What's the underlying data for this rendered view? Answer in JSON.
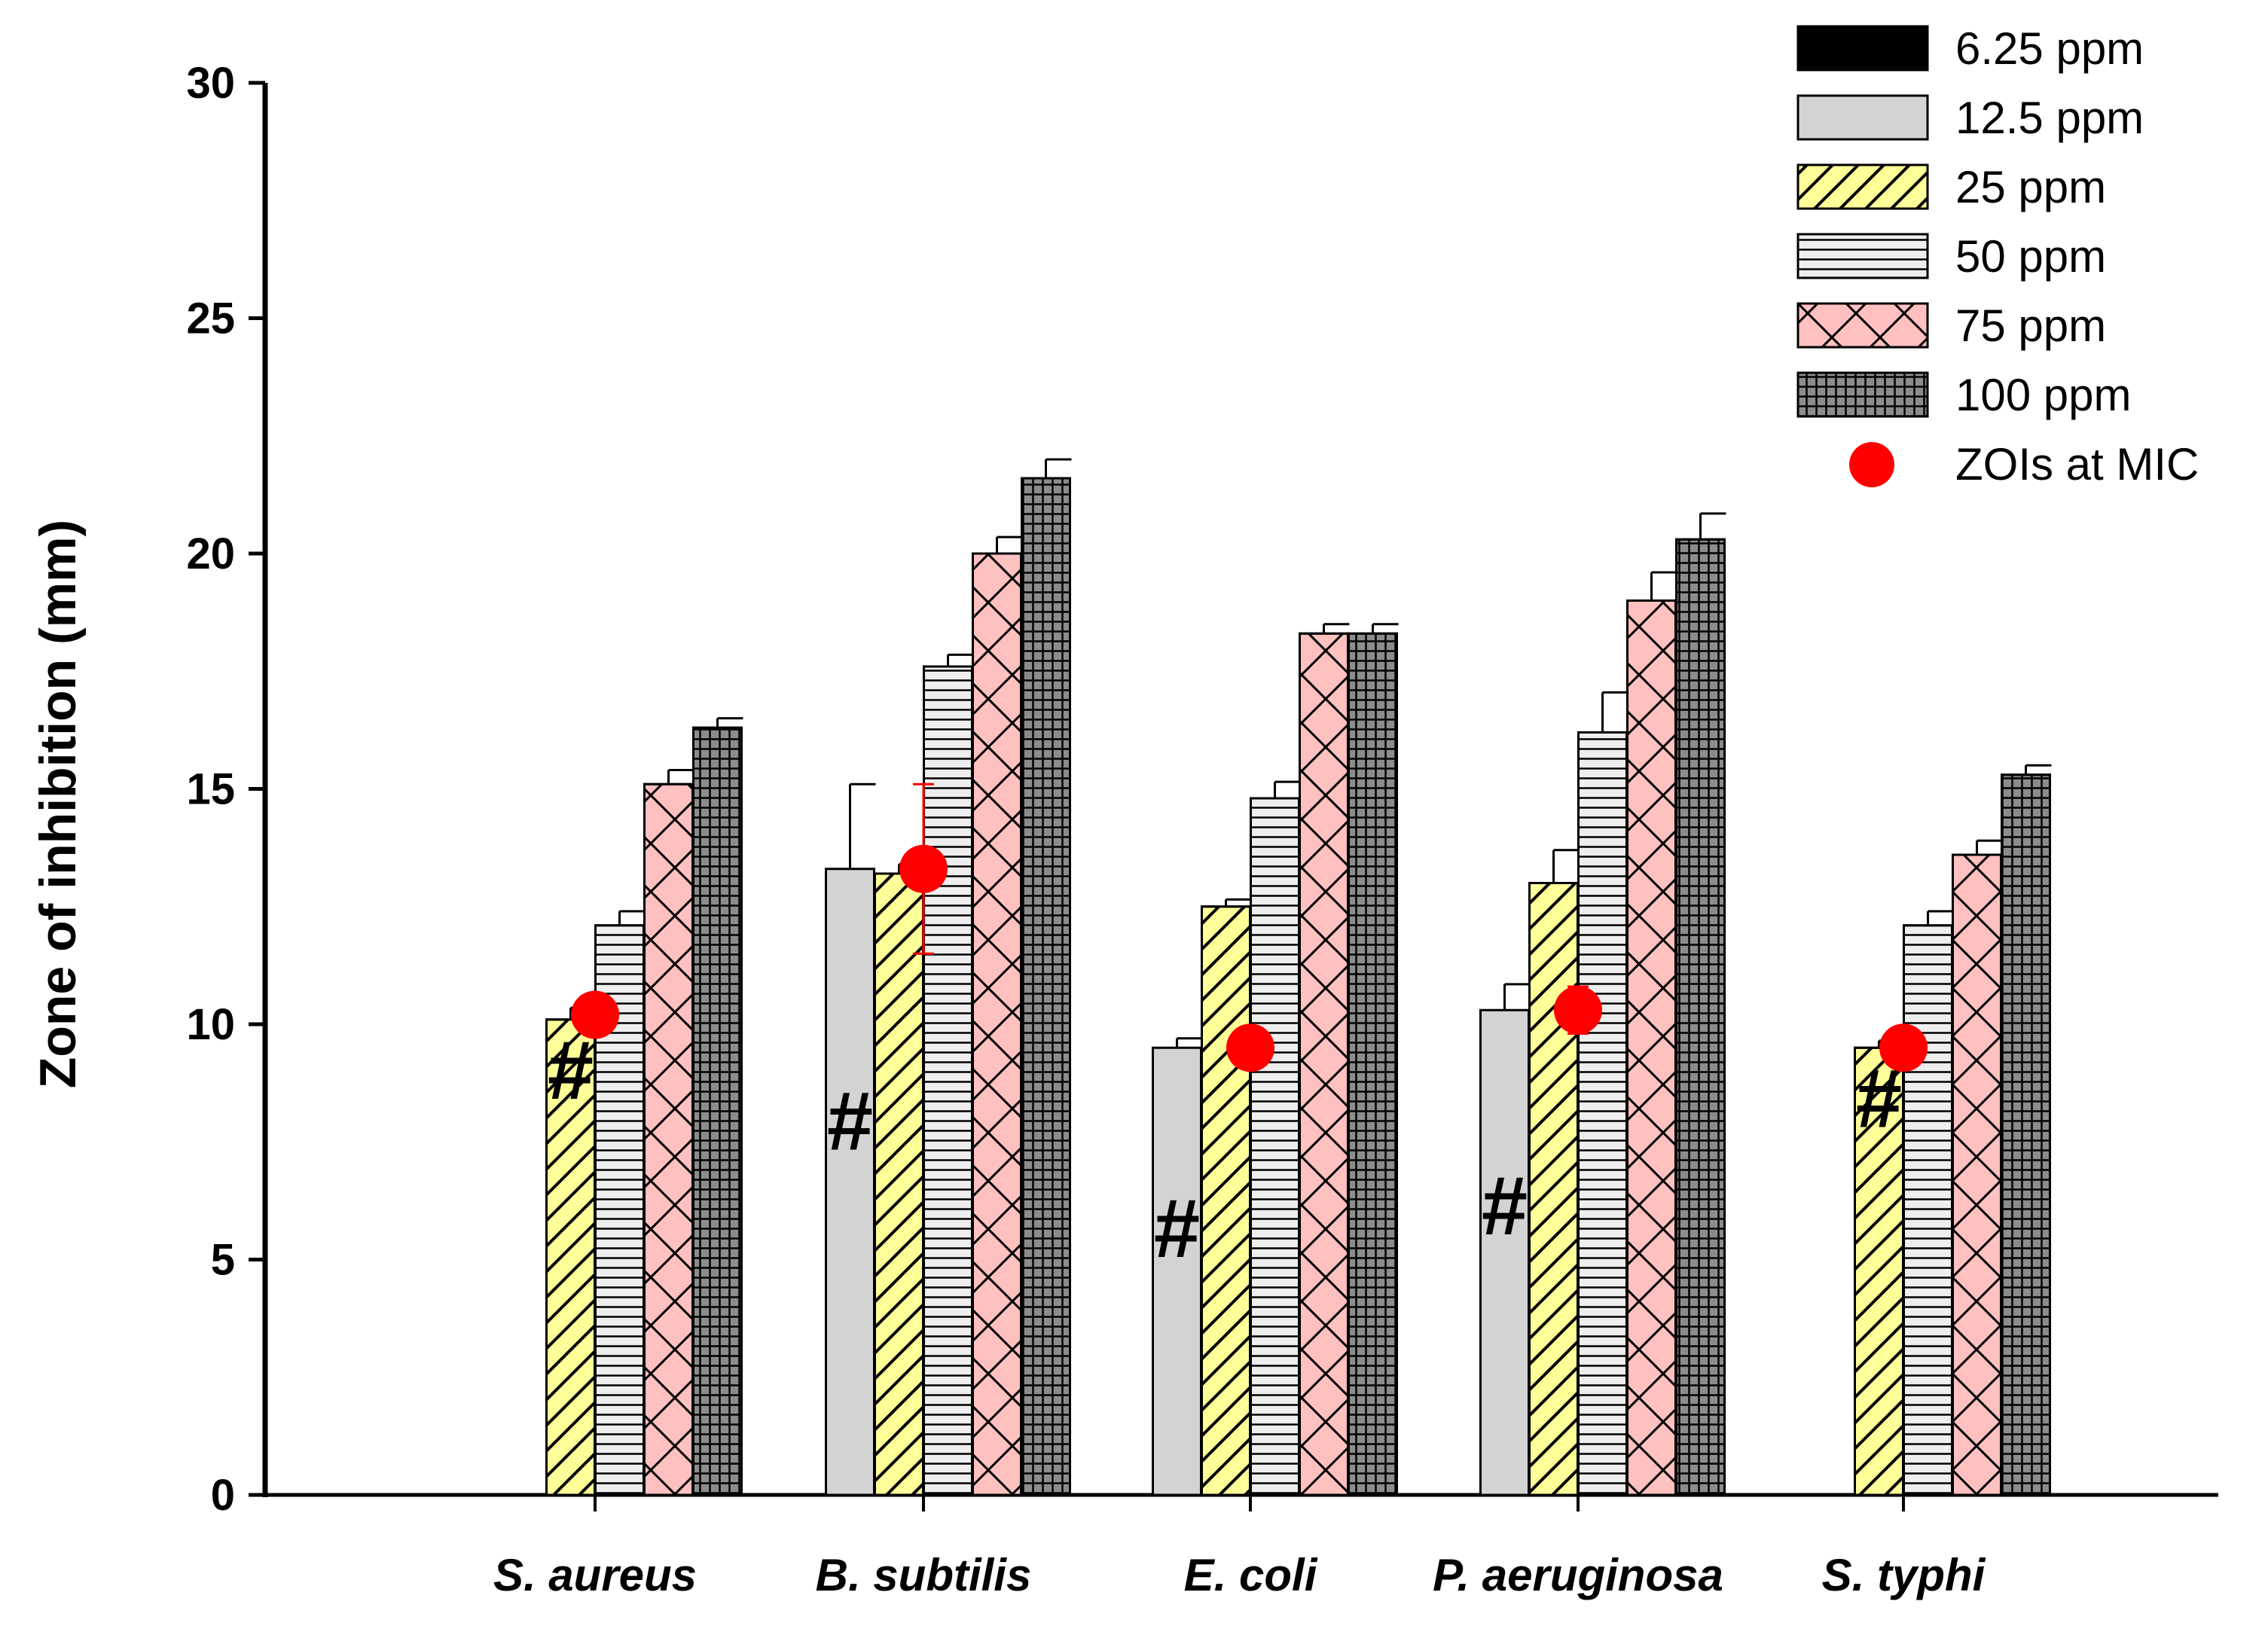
{
  "chart_data": {
    "type": "bar",
    "title": "",
    "xlabel": "",
    "ylabel": "Zone of inhibition (mm)",
    "ylim": [
      0,
      30
    ],
    "yticks": [
      "0",
      "5",
      "10",
      "15",
      "20",
      "25",
      "30"
    ],
    "categories": [
      "S. aureus",
      "B. subtilis",
      "E. coli",
      "P. aeruginosa",
      "S. typhi"
    ],
    "series": [
      {
        "name": "6.25 ppm",
        "color": "#000000",
        "pattern": "solid",
        "values": [
          0,
          0,
          0,
          0,
          0
        ],
        "errors": [
          0,
          0,
          0,
          0,
          0
        ]
      },
      {
        "name": "12.5 ppm",
        "color": "#d3d3d3",
        "pattern": "solid",
        "values": [
          0,
          13.3,
          9.5,
          10.3,
          0
        ],
        "errors": [
          0,
          1.8,
          0.2,
          0.55,
          0
        ]
      },
      {
        "name": "25 ppm",
        "color": "#ffff99",
        "pattern": "diagonal",
        "values": [
          10.1,
          13.2,
          12.5,
          13.0,
          9.5
        ],
        "errors": [
          0.25,
          0.2,
          0.15,
          0.7,
          0.15
        ]
      },
      {
        "name": "50 ppm",
        "color": "#eeeeee",
        "pattern": "horizontal",
        "values": [
          12.1,
          17.6,
          14.8,
          16.2,
          12.1
        ],
        "errors": [
          0.3,
          0.25,
          0.35,
          0.85,
          0.3
        ]
      },
      {
        "name": "75 ppm",
        "color": "#ffc0c0",
        "pattern": "crosshatch",
        "values": [
          15.1,
          20.0,
          18.3,
          19.0,
          13.6
        ],
        "errors": [
          0.3,
          0.35,
          0.2,
          0.6,
          0.3
        ]
      },
      {
        "name": "100 ppm",
        "color": "#8c8c8c",
        "pattern": "grid",
        "values": [
          16.3,
          21.6,
          18.3,
          20.3,
          15.3
        ],
        "errors": [
          0.2,
          0.4,
          0.2,
          0.55,
          0.2
        ]
      }
    ],
    "overlay": {
      "name": "ZOIs at MIC",
      "color": "#ff0000",
      "values": [
        10.2,
        13.3,
        9.5,
        10.3,
        9.5
      ],
      "errors": [
        0,
        1.8,
        0,
        0.5,
        0
      ]
    },
    "annotations": [
      {
        "text": "#",
        "category": "S. aureus",
        "series": "25 ppm"
      },
      {
        "text": "#",
        "category": "B. subtilis",
        "series": "12.5 ppm"
      },
      {
        "text": "#",
        "category": "E. coli",
        "series": "12.5 ppm"
      },
      {
        "text": "#",
        "category": "P. aeruginosa",
        "series": "12.5 ppm"
      },
      {
        "text": "#",
        "category": "S. typhi",
        "series": "25 ppm"
      }
    ],
    "legend_position": "top-right"
  }
}
